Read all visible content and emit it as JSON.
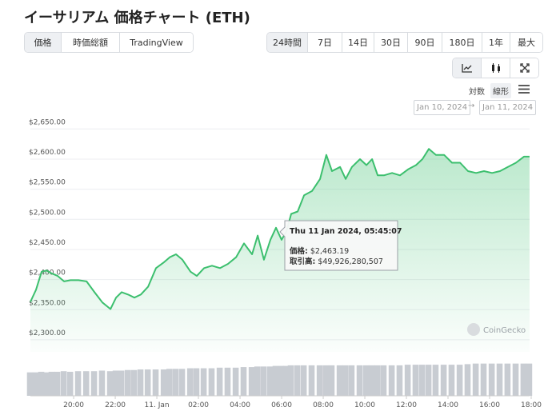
{
  "header": {
    "title": "イーサリアム 価格チャート (ETH)",
    "tabs": [
      "価格",
      "時価総額",
      "TradingView"
    ],
    "active_tab": 0,
    "ranges": [
      "24時間",
      "7日",
      "14日",
      "30日",
      "90日",
      "180日",
      "1年",
      "最大"
    ],
    "active_range": 0,
    "scale_options": [
      "対数",
      "線形"
    ],
    "active_scale": 1,
    "date_from": "Jan 10, 2024",
    "date_arrow": "→",
    "date_to": "Jan 11, 2024"
  },
  "chart_data": {
    "type": "line",
    "x": [
      17.92,
      18.19,
      18.46,
      18.69,
      18.96,
      19.23,
      19.54,
      19.85,
      20.23,
      20.62,
      21.0,
      21.38,
      21.77,
      22.04,
      22.31,
      22.62,
      22.92,
      23.23,
      23.58,
      23.96,
      24.35,
      24.62,
      24.92,
      25.23,
      25.62,
      25.92,
      26.27,
      26.65,
      27.04,
      27.42,
      27.81,
      28.19,
      28.58,
      28.85,
      29.15,
      29.46,
      29.73,
      30.0,
      30.23,
      30.46,
      30.77,
      31.08,
      31.46,
      31.85,
      32.15,
      32.42,
      32.81,
      33.08,
      33.38,
      33.77,
      34.08,
      34.35,
      34.62,
      34.92,
      35.31,
      35.69,
      36.08,
      36.46,
      36.77,
      37.08,
      37.42,
      37.81,
      38.19,
      38.58,
      38.96,
      39.35,
      39.73,
      40.12,
      40.5,
      40.88,
      41.27,
      41.65,
      41.92
    ],
    "series": [
      {
        "color": "#3cbf6e",
        "values": [
          2363,
          2383,
          2413,
          2415,
          2410,
          2406,
          2397,
          2399,
          2399,
          2397,
          2379,
          2362,
          2351,
          2370,
          2379,
          2375,
          2370,
          2375,
          2388,
          2419,
          2429,
          2437,
          2442,
          2433,
          2413,
          2406,
          2419,
          2423,
          2419,
          2426,
          2437,
          2460,
          2442,
          2473,
          2433,
          2466,
          2486,
          2466,
          2480,
          2509,
          2513,
          2540,
          2547,
          2567,
          2607,
          2580,
          2587,
          2567,
          2587,
          2600,
          2590,
          2600,
          2573,
          2573,
          2577,
          2573,
          2583,
          2590,
          2600,
          2617,
          2607,
          2607,
          2594,
          2594,
          2580,
          2577,
          2580,
          2577,
          2580,
          2587,
          2594,
          2604,
          2604
        ]
      }
    ],
    "volume": {
      "color": "#c8ccd2",
      "ylim": [
        0,
        75000000000
      ],
      "values": [
        40000000000,
        40000000000,
        41000000000,
        40000000000,
        41000000000,
        41000000000,
        42000000000,
        41000000000,
        42000000000,
        42000000000,
        42000000000,
        43000000000,
        42000000000,
        43000000000,
        43000000000,
        44000000000,
        44000000000,
        45000000000,
        45000000000,
        45000000000,
        45000000000,
        46000000000,
        46000000000,
        46000000000,
        47000000000,
        47000000000,
        47000000000,
        47000000000,
        48000000000,
        48000000000,
        48000000000,
        49000000000,
        49000000000,
        50000000000,
        50000000000,
        50000000000,
        51000000000,
        51000000000,
        51000000000,
        52000000000,
        52000000000,
        52000000000,
        52000000000,
        52000000000,
        52000000000,
        52000000000,
        52000000000,
        52000000000,
        52000000000,
        52000000000,
        52000000000,
        52000000000,
        52000000000,
        52000000000,
        52000000000,
        52000000000,
        53000000000,
        53000000000,
        53000000000,
        53000000000,
        53000000000,
        53000000000,
        53000000000,
        53000000000,
        54000000000,
        55000000000,
        55000000000,
        55000000000,
        55000000000,
        55000000000,
        55000000000,
        55000000000,
        55000000000
      ]
    },
    "xlim": [
      17.92,
      42.0
    ],
    "xticks": [
      {
        "value": 20,
        "label": "20:00"
      },
      {
        "value": 22,
        "label": "22:00"
      },
      {
        "value": 24,
        "label": "11. Jan"
      },
      {
        "value": 26,
        "label": "02:00"
      },
      {
        "value": 28,
        "label": "04:00"
      },
      {
        "value": 30,
        "label": "06:00"
      },
      {
        "value": 32,
        "label": "08:00"
      },
      {
        "value": 34,
        "label": "10:00"
      },
      {
        "value": 36,
        "label": "12:00"
      },
      {
        "value": 38,
        "label": "14:00"
      },
      {
        "value": 40,
        "label": "16:00"
      },
      {
        "value": 42,
        "label": "18:00"
      }
    ],
    "ylim": [
      2280,
      2665
    ],
    "yticks": [
      {
        "value": 2300,
        "label": "$2,300.00"
      },
      {
        "value": 2350,
        "label": "$2,350.00"
      },
      {
        "value": 2400,
        "label": "$2,400.00"
      },
      {
        "value": 2450,
        "label": "$2,450.00"
      },
      {
        "value": 2500,
        "label": "$2,500.00"
      },
      {
        "value": 2550,
        "label": "$2,550.00"
      },
      {
        "value": 2600,
        "label": "$2,600.00"
      },
      {
        "value": 2650,
        "label": "$2,650.00"
      }
    ],
    "grid": true,
    "tooltip": {
      "date": "Thu 11 Jan 2024, 05:45:07",
      "price_label": "価格:",
      "price": "$2,463.19",
      "volume_label": "取引高:",
      "volume": "$49,926,280,507"
    },
    "watermark": "CoinGecko"
  }
}
